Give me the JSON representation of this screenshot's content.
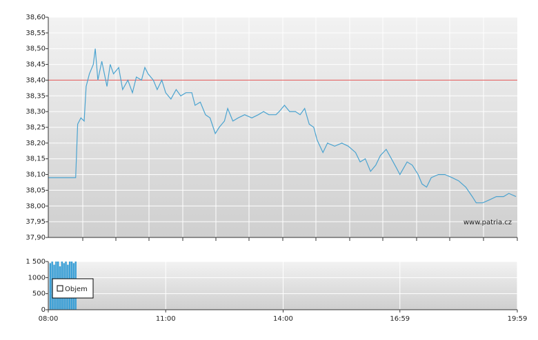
{
  "chart_data": [
    {
      "type": "line",
      "color": "#4aa3d0",
      "reference": 38.4,
      "reference_color": "#e05050",
      "annotation": "www.patria.cz",
      "xlim": [
        "08:00",
        "19:59"
      ],
      "ylim": [
        37.9,
        38.6
      ],
      "yticks": [
        {
          "value": 37.9,
          "label": "37,90"
        },
        {
          "value": 37.95,
          "label": "37,95"
        },
        {
          "value": 38.0,
          "label": "38,00"
        },
        {
          "value": 38.05,
          "label": "38,05"
        },
        {
          "value": 38.1,
          "label": "38,10"
        },
        {
          "value": 38.15,
          "label": "38,15"
        },
        {
          "value": 38.2,
          "label": "38,20"
        },
        {
          "value": 38.25,
          "label": "38,25"
        },
        {
          "value": 38.3,
          "label": "38,30"
        },
        {
          "value": 38.35,
          "label": "38,35"
        },
        {
          "value": 38.4,
          "label": "38,40"
        },
        {
          "value": 38.45,
          "label": "38,45"
        },
        {
          "value": 38.5,
          "label": "38,50"
        },
        {
          "value": 38.55,
          "label": "38,55"
        },
        {
          "value": 38.6,
          "label": "38,60"
        }
      ],
      "x": [
        "08:00",
        "08:42",
        "08:45",
        "08:50",
        "08:55",
        "08:58",
        "09:03",
        "09:09",
        "09:12",
        "09:16",
        "09:22",
        "09:30",
        "09:35",
        "09:40",
        "09:48",
        "09:54",
        "10:02",
        "10:09",
        "10:15",
        "10:23",
        "10:28",
        "10:33",
        "10:41",
        "10:47",
        "10:54",
        "11:00",
        "11:08",
        "11:16",
        "11:23",
        "11:31",
        "11:40",
        "11:45",
        "11:53",
        "12:01",
        "12:08",
        "12:16",
        "12:22",
        "12:30",
        "12:35",
        "12:43",
        "12:51",
        "13:01",
        "13:12",
        "13:22",
        "13:30",
        "13:38",
        "13:49",
        "13:54",
        "14:02",
        "14:10",
        "14:19",
        "14:26",
        "14:33",
        "14:40",
        "14:47",
        "14:52",
        "15:01",
        "15:08",
        "15:19",
        "15:30",
        "15:40",
        "15:51",
        "15:58",
        "16:06",
        "16:14",
        "16:22",
        "16:29",
        "16:38",
        "16:46",
        "16:54",
        "16:59",
        "17:10",
        "17:18",
        "17:27",
        "17:33",
        "17:40",
        "17:47",
        "17:58",
        "18:08",
        "18:19",
        "18:29",
        "18:40",
        "18:50",
        "18:56",
        "19:06",
        "19:17",
        "19:27",
        "19:38",
        "19:46",
        "19:57"
      ],
      "values": [
        38.09,
        38.09,
        38.26,
        38.28,
        38.27,
        38.38,
        38.42,
        38.45,
        38.5,
        38.4,
        38.46,
        38.38,
        38.45,
        38.42,
        38.44,
        38.37,
        38.4,
        38.36,
        38.41,
        38.4,
        38.44,
        38.42,
        38.4,
        38.37,
        38.4,
        38.36,
        38.34,
        38.37,
        38.35,
        38.36,
        38.36,
        38.32,
        38.33,
        38.29,
        38.28,
        38.23,
        38.25,
        38.27,
        38.31,
        38.27,
        38.28,
        38.29,
        38.28,
        38.29,
        38.3,
        38.29,
        38.29,
        38.3,
        38.32,
        38.3,
        38.3,
        38.29,
        38.31,
        38.26,
        38.25,
        38.21,
        38.17,
        38.2,
        38.19,
        38.2,
        38.19,
        38.17,
        38.14,
        38.15,
        38.11,
        38.13,
        38.16,
        38.18,
        38.15,
        38.12,
        38.1,
        38.14,
        38.13,
        38.1,
        38.07,
        38.06,
        38.09,
        38.1,
        38.1,
        38.09,
        38.08,
        38.06,
        38.03,
        38.01,
        38.01,
        38.02,
        38.03,
        38.03,
        38.04,
        38.03
      ]
    },
    {
      "type": "bar",
      "xlim": [
        "08:00",
        "19:59"
      ],
      "xticks": [
        "08:00",
        "11:00",
        "14:00",
        "16:59",
        "19:59"
      ],
      "ylim": [
        0,
        1500
      ],
      "yticks": [
        0,
        500,
        1000,
        {
          "value": 1500,
          "label": "1 500"
        }
      ],
      "x": [
        "08:03",
        "08:06",
        "08:09",
        "08:12",
        "08:15",
        "08:18",
        "08:21",
        "08:24",
        "08:27",
        "08:30",
        "08:33",
        "08:36",
        "08:39",
        "08:42"
      ],
      "series": [
        {
          "name": "Objem",
          "color": "#3a9fd6",
          "values": [
            1450,
            1500,
            1400,
            1500,
            1500,
            1350,
            1500,
            1450,
            1500,
            1400,
            1500,
            1500,
            1450,
            1500
          ]
        }
      ]
    }
  ]
}
